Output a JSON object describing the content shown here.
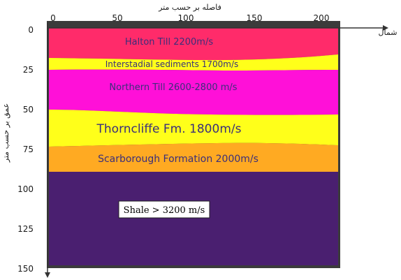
{
  "x_axis": {
    "title": "فاصله بر حسب متر",
    "end_label": "شمال",
    "ticks": [
      "0",
      "50",
      "100",
      "150",
      "200"
    ]
  },
  "y_axis": {
    "title": "عمق بر حسب متر",
    "ticks": [
      "0",
      "25",
      "50",
      "75",
      "100",
      "125",
      "150"
    ]
  },
  "layers": [
    {
      "label": "Halton Till    2200m/s",
      "color": "#ff2b6a",
      "top_depth": 0,
      "bottom_depth": 20
    },
    {
      "label": "Interstadial sediments 1700m/s",
      "color": "#ffff1a",
      "top_depth": 20,
      "bottom_depth": 28
    },
    {
      "label": "Northern Till 2600-2800 m/s",
      "color": "#ff10d8",
      "top_depth": 28,
      "bottom_depth": 53
    },
    {
      "label": "Thorncliffe Fm. 1800m/s",
      "color": "#ffff1a",
      "top_depth": 53,
      "bottom_depth": 75
    },
    {
      "label": "Scarborough Formation 2000m/s",
      "color": "#ffaa22",
      "top_depth": 75,
      "bottom_depth": 90
    },
    {
      "label": "Shale > 3200 m/s",
      "color": "#4a1f70",
      "top_depth": 90,
      "bottom_depth": 150
    }
  ]
}
